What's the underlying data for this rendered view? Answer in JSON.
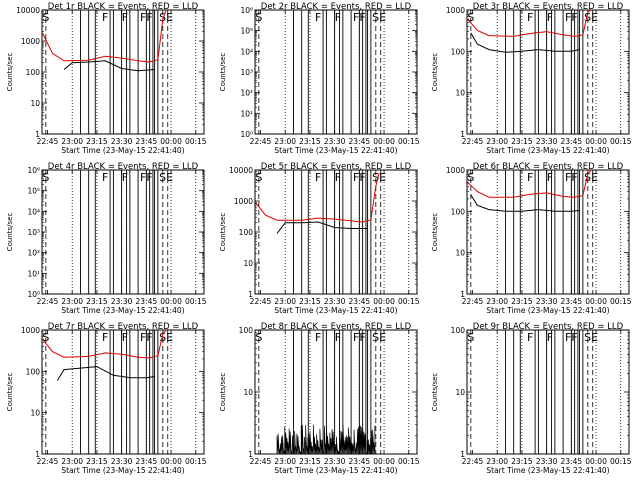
{
  "chart_data": [
    {
      "type": "line",
      "title": "Det 1r BLACK = Events, RED = LLD",
      "xlabel": "Start Time (23-May-15 22:41:40)",
      "ylabel": "Counts/sec",
      "y_scale": "log",
      "ylim": [
        1,
        10000
      ],
      "yticks": [
        {
          "v": 1,
          "label": "1"
        },
        {
          "v": 10,
          "label": "10"
        },
        {
          "v": 100,
          "label": "100"
        },
        {
          "v": 1000,
          "label": "1000"
        },
        {
          "v": 10000,
          "label": "10000"
        }
      ],
      "xlim": [
        "22:41:40",
        "00:20:00"
      ],
      "xticks": [
        "22:45",
        "23:00",
        "23:15",
        "23:30",
        "23:45",
        "00:00",
        "00:15"
      ],
      "markers": [
        {
          "x": "22:44",
          "label": "S"
        },
        {
          "x": "23:20",
          "label": "F"
        },
        {
          "x": "23:32",
          "label": "F"
        },
        {
          "x": "23:45",
          "label": "FF"
        },
        {
          "x": "23:57",
          "label": "SE"
        }
      ],
      "series": [
        {
          "name": "Events",
          "color": "#000000",
          "points": [
            [
              "22:55",
              120
            ],
            [
              "23:00",
              200
            ],
            [
              "23:10",
              210
            ],
            [
              "23:20",
              230
            ],
            [
              "23:30",
              130
            ],
            [
              "23:40",
              110
            ],
            [
              "23:50",
              120
            ]
          ]
        },
        {
          "name": "LLD",
          "color": "#e00000",
          "points": [
            [
              "22:42",
              1800
            ],
            [
              "22:48",
              400
            ],
            [
              "22:55",
              230
            ],
            [
              "23:10",
              240
            ],
            [
              "23:20",
              320
            ],
            [
              "23:30",
              280
            ],
            [
              "23:40",
              230
            ],
            [
              "23:47",
              210
            ],
            [
              "23:52",
              250
            ],
            [
              "23:55",
              5000
            ],
            [
              "23:57",
              12000
            ]
          ]
        }
      ]
    },
    {
      "type": "line",
      "title": "Det 2r BLACK = Events, RED = LLD",
      "xlabel": "Start Time (23-May-15 22:41:40)",
      "ylabel": "Counts/sec",
      "y_scale": "log",
      "ylim": [
        1,
        1000000
      ],
      "yticks": [
        {
          "v": 1,
          "label": "10⁰"
        },
        {
          "v": 10,
          "label": "10¹"
        },
        {
          "v": 100,
          "label": "10²"
        },
        {
          "v": 1000,
          "label": "10³"
        },
        {
          "v": 10000,
          "label": "10⁴"
        },
        {
          "v": 100000,
          "label": "10⁵"
        },
        {
          "v": 1000000,
          "label": "10⁶"
        }
      ],
      "xlim": [
        "22:41:40",
        "00:20:00"
      ],
      "xticks": [
        "22:45",
        "23:00",
        "23:15",
        "23:30",
        "23:45",
        "00:00",
        "00:15"
      ],
      "markers": [
        {
          "x": "22:44",
          "label": "S"
        },
        {
          "x": "23:20",
          "label": "F"
        },
        {
          "x": "23:32",
          "label": "F"
        },
        {
          "x": "23:45",
          "label": "FF"
        },
        {
          "x": "23:57",
          "label": "SE"
        }
      ],
      "series": []
    },
    {
      "type": "line",
      "title": "Det 3r BLACK = Events, RED = LLD",
      "xlabel": "Start Time (23-May-15 22:41:40)",
      "ylabel": "Counts/sec",
      "y_scale": "log",
      "ylim": [
        1,
        1000
      ],
      "yticks": [
        {
          "v": 1,
          "label": "1"
        },
        {
          "v": 10,
          "label": "10"
        },
        {
          "v": 100,
          "label": "100"
        },
        {
          "v": 1000,
          "label": "1000"
        }
      ],
      "xlim": [
        "22:41:40",
        "00:20:00"
      ],
      "xticks": [
        "22:45",
        "23:00",
        "23:15",
        "23:30",
        "23:45",
        "00:00",
        "00:15"
      ],
      "markers": [
        {
          "x": "22:44",
          "label": "S"
        },
        {
          "x": "23:20",
          "label": "F"
        },
        {
          "x": "23:32",
          "label": "F"
        },
        {
          "x": "23:45",
          "label": "FF"
        },
        {
          "x": "23:57",
          "label": "SE"
        }
      ],
      "series": [
        {
          "name": "Events",
          "color": "#000000",
          "points": [
            [
              "22:44",
              280
            ],
            [
              "22:48",
              150
            ],
            [
              "22:55",
              110
            ],
            [
              "23:05",
              95
            ],
            [
              "23:15",
              100
            ],
            [
              "23:25",
              110
            ],
            [
              "23:35",
              100
            ],
            [
              "23:45",
              100
            ],
            [
              "23:50",
              110
            ]
          ]
        },
        {
          "name": "LLD",
          "color": "#e00000",
          "points": [
            [
              "22:42",
              600
            ],
            [
              "22:48",
              320
            ],
            [
              "22:55",
              240
            ],
            [
              "23:10",
              230
            ],
            [
              "23:20",
              270
            ],
            [
              "23:30",
              300
            ],
            [
              "23:40",
              250
            ],
            [
              "23:47",
              230
            ],
            [
              "23:52",
              250
            ],
            [
              "23:55",
              900
            ],
            [
              "23:57",
              1200
            ]
          ]
        }
      ]
    },
    {
      "type": "line",
      "title": "Det 4r BLACK = Events, RED = LLD",
      "xlabel": "Start Time (23-May-15 22:41:40)",
      "ylabel": "Counts/sec",
      "y_scale": "log",
      "ylim": [
        1,
        1000000
      ],
      "yticks": [
        {
          "v": 1,
          "label": "10⁰"
        },
        {
          "v": 10,
          "label": "10¹"
        },
        {
          "v": 100,
          "label": "10²"
        },
        {
          "v": 1000,
          "label": "10³"
        },
        {
          "v": 10000,
          "label": "10⁴"
        },
        {
          "v": 100000,
          "label": "10⁵"
        },
        {
          "v": 1000000,
          "label": "10⁶"
        }
      ],
      "xlim": [
        "22:41:40",
        "00:20:00"
      ],
      "xticks": [
        "22:45",
        "23:00",
        "23:15",
        "23:30",
        "23:45",
        "00:00",
        "00:15"
      ],
      "markers": [
        {
          "x": "22:44",
          "label": "S"
        },
        {
          "x": "23:20",
          "label": "F"
        },
        {
          "x": "23:32",
          "label": "F"
        },
        {
          "x": "23:45",
          "label": "FF"
        },
        {
          "x": "23:57",
          "label": "SE"
        }
      ],
      "series": []
    },
    {
      "type": "line",
      "title": "Det 5r BLACK = Events, RED = LLD",
      "xlabel": "Start Time (23-May-15 22:41:40)",
      "ylabel": "Counts/sec",
      "y_scale": "log",
      "ylim": [
        1,
        10000
      ],
      "yticks": [
        {
          "v": 1,
          "label": "1"
        },
        {
          "v": 10,
          "label": "10"
        },
        {
          "v": 100,
          "label": "100"
        },
        {
          "v": 1000,
          "label": "1000"
        },
        {
          "v": 10000,
          "label": "10000"
        }
      ],
      "xlim": [
        "22:41:40",
        "00:20:00"
      ],
      "xticks": [
        "22:45",
        "23:00",
        "23:15",
        "23:30",
        "23:45",
        "00:00",
        "00:15"
      ],
      "markers": [
        {
          "x": "22:44",
          "label": "S"
        },
        {
          "x": "23:20",
          "label": "F"
        },
        {
          "x": "23:32",
          "label": "F"
        },
        {
          "x": "23:45",
          "label": "FF"
        },
        {
          "x": "23:57",
          "label": "SE"
        }
      ],
      "series": [
        {
          "name": "Events",
          "color": "#000000",
          "points": [
            [
              "22:55",
              90
            ],
            [
              "23:00",
              200
            ],
            [
              "23:10",
              200
            ],
            [
              "23:20",
              210
            ],
            [
              "23:30",
              140
            ],
            [
              "23:40",
              130
            ],
            [
              "23:50",
              130
            ]
          ]
        },
        {
          "name": "LLD",
          "color": "#e00000",
          "points": [
            [
              "22:42",
              900
            ],
            [
              "22:48",
              350
            ],
            [
              "22:55",
              240
            ],
            [
              "23:10",
              240
            ],
            [
              "23:20",
              280
            ],
            [
              "23:30",
              260
            ],
            [
              "23:40",
              230
            ],
            [
              "23:47",
              210
            ],
            [
              "23:52",
              250
            ],
            [
              "23:55",
              3000
            ],
            [
              "23:57",
              8000
            ]
          ]
        }
      ]
    },
    {
      "type": "line",
      "title": "Det 6r BLACK = Events, RED = LLD",
      "xlabel": "Start Time (23-May-15 22:41:40)",
      "ylabel": "Counts/sec",
      "y_scale": "log",
      "ylim": [
        1,
        1000
      ],
      "yticks": [
        {
          "v": 1,
          "label": "1"
        },
        {
          "v": 10,
          "label": "10"
        },
        {
          "v": 100,
          "label": "100"
        },
        {
          "v": 1000,
          "label": "1000"
        }
      ],
      "xlim": [
        "22:41:40",
        "00:20:00"
      ],
      "xticks": [
        "22:45",
        "23:00",
        "23:15",
        "23:30",
        "23:45",
        "00:00",
        "00:15"
      ],
      "markers": [
        {
          "x": "22:44",
          "label": "S"
        },
        {
          "x": "23:20",
          "label": "F"
        },
        {
          "x": "23:32",
          "label": "F"
        },
        {
          "x": "23:45",
          "label": "FF"
        },
        {
          "x": "23:57",
          "label": "SE"
        }
      ],
      "series": [
        {
          "name": "Events",
          "color": "#000000",
          "points": [
            [
              "22:44",
              250
            ],
            [
              "22:48",
              140
            ],
            [
              "22:55",
              110
            ],
            [
              "23:05",
              100
            ],
            [
              "23:15",
              100
            ],
            [
              "23:25",
              110
            ],
            [
              "23:35",
              100
            ],
            [
              "23:45",
              100
            ],
            [
              "23:50",
              105
            ]
          ]
        },
        {
          "name": "LLD",
          "color": "#e00000",
          "points": [
            [
              "22:42",
              500
            ],
            [
              "22:48",
              300
            ],
            [
              "22:55",
              220
            ],
            [
              "23:10",
              220
            ],
            [
              "23:20",
              260
            ],
            [
              "23:30",
              280
            ],
            [
              "23:40",
              230
            ],
            [
              "23:47",
              220
            ],
            [
              "23:52",
              240
            ],
            [
              "23:55",
              800
            ],
            [
              "23:57",
              1100
            ]
          ]
        }
      ]
    },
    {
      "type": "line",
      "title": "Det 7r BLACK = Events, RED = LLD",
      "xlabel": "Start Time (23-May-15 22:41:40)",
      "ylabel": "Counts/sec",
      "y_scale": "log",
      "ylim": [
        1,
        1000
      ],
      "yticks": [
        {
          "v": 1,
          "label": "1"
        },
        {
          "v": 10,
          "label": "10"
        },
        {
          "v": 100,
          "label": "100"
        },
        {
          "v": 1000,
          "label": "1000"
        }
      ],
      "xlim": [
        "22:41:40",
        "00:20:00"
      ],
      "xticks": [
        "22:45",
        "23:00",
        "23:15",
        "23:30",
        "23:45",
        "00:00",
        "00:15"
      ],
      "markers": [
        {
          "x": "22:44",
          "label": "S"
        },
        {
          "x": "23:20",
          "label": "F"
        },
        {
          "x": "23:32",
          "label": "F"
        },
        {
          "x": "23:45",
          "label": "FF"
        },
        {
          "x": "23:57",
          "label": "SE"
        }
      ],
      "series": [
        {
          "name": "Events",
          "color": "#000000",
          "points": [
            [
              "22:51",
              60
            ],
            [
              "22:55",
              110
            ],
            [
              "23:05",
              120
            ],
            [
              "23:15",
              130
            ],
            [
              "23:25",
              80
            ],
            [
              "23:35",
              70
            ],
            [
              "23:45",
              70
            ],
            [
              "23:50",
              75
            ]
          ]
        },
        {
          "name": "LLD",
          "color": "#e00000",
          "points": [
            [
              "22:42",
              600
            ],
            [
              "22:48",
              300
            ],
            [
              "22:55",
              220
            ],
            [
              "23:10",
              230
            ],
            [
              "23:20",
              280
            ],
            [
              "23:30",
              260
            ],
            [
              "23:40",
              220
            ],
            [
              "23:47",
              210
            ],
            [
              "23:52",
              240
            ],
            [
              "23:55",
              800
            ],
            [
              "23:57",
              1100
            ]
          ]
        }
      ]
    },
    {
      "type": "line",
      "title": "Det 8r BLACK = Events, RED = LLD",
      "xlabel": "Start Time (23-May-15 22:41:40)",
      "ylabel": "Counts/sec",
      "y_scale": "log",
      "ylim": [
        1,
        100
      ],
      "yticks": [
        {
          "v": 1,
          "label": "1"
        },
        {
          "v": 10,
          "label": "10"
        },
        {
          "v": 100,
          "label": "100"
        }
      ],
      "xlim": [
        "22:41:40",
        "00:20:00"
      ],
      "xticks": [
        "22:45",
        "23:00",
        "23:15",
        "23:30",
        "23:45",
        "00:00",
        "00:15"
      ],
      "markers": [
        {
          "x": "22:44",
          "label": "S"
        },
        {
          "x": "23:20",
          "label": "F"
        },
        {
          "x": "23:32",
          "label": "F"
        },
        {
          "x": "23:45",
          "label": "FF"
        },
        {
          "x": "23:57",
          "label": "SE"
        }
      ],
      "series": [
        {
          "name": "Events",
          "color": "#000000",
          "noisy": true,
          "x_range": [
            "22:55",
            "23:55"
          ],
          "y_range": [
            1,
            3
          ]
        }
      ]
    },
    {
      "type": "line",
      "title": "Det 9r BLACK = Events, RED = LLD",
      "xlabel": "Start Time (23-May-15 22:41:40)",
      "ylabel": "Counts/sec",
      "y_scale": "log",
      "ylim": [
        1,
        100
      ],
      "yticks": [
        {
          "v": 1,
          "label": "1"
        },
        {
          "v": 10,
          "label": "10"
        },
        {
          "v": 100,
          "label": "100"
        }
      ],
      "xlim": [
        "22:41:40",
        "00:20:00"
      ],
      "xticks": [
        "22:45",
        "23:00",
        "23:15",
        "23:30",
        "23:45",
        "00:00",
        "00:15"
      ],
      "markers": [
        {
          "x": "22:44",
          "label": "S"
        },
        {
          "x": "23:20",
          "label": "F"
        },
        {
          "x": "23:32",
          "label": "F"
        },
        {
          "x": "23:45",
          "label": "FF"
        },
        {
          "x": "23:57",
          "label": "SE"
        }
      ],
      "series": []
    }
  ]
}
